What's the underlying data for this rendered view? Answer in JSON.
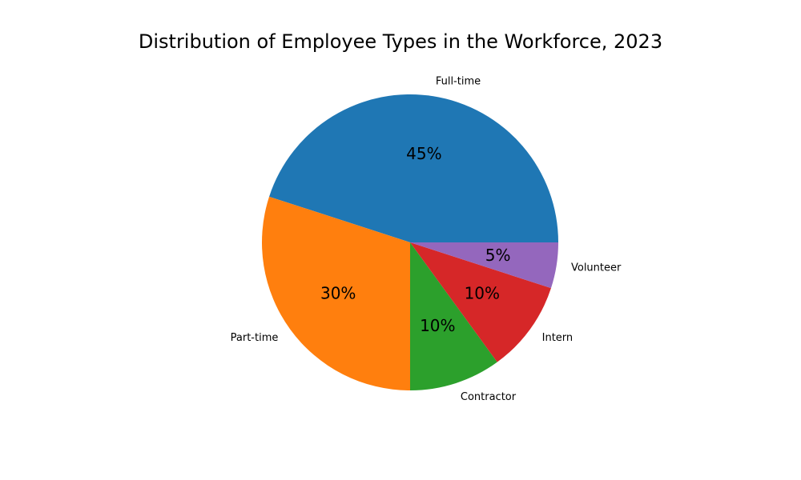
{
  "chart_data": {
    "type": "pie",
    "title": "Distribution of Employee Types in the Workforce, 2023",
    "categories": [
      "Full-time",
      "Part-time",
      "Contractor",
      "Intern",
      "Volunteer"
    ],
    "values": [
      45,
      30,
      10,
      10,
      5
    ],
    "value_labels": [
      "45%",
      "30%",
      "10%",
      "10%",
      "5%"
    ],
    "colors": [
      "#1f77b4",
      "#ff7f0e",
      "#2ca02c",
      "#d62728",
      "#9467bd"
    ],
    "start_angle": 0,
    "direction": "counterclockwise",
    "legend": "none"
  }
}
